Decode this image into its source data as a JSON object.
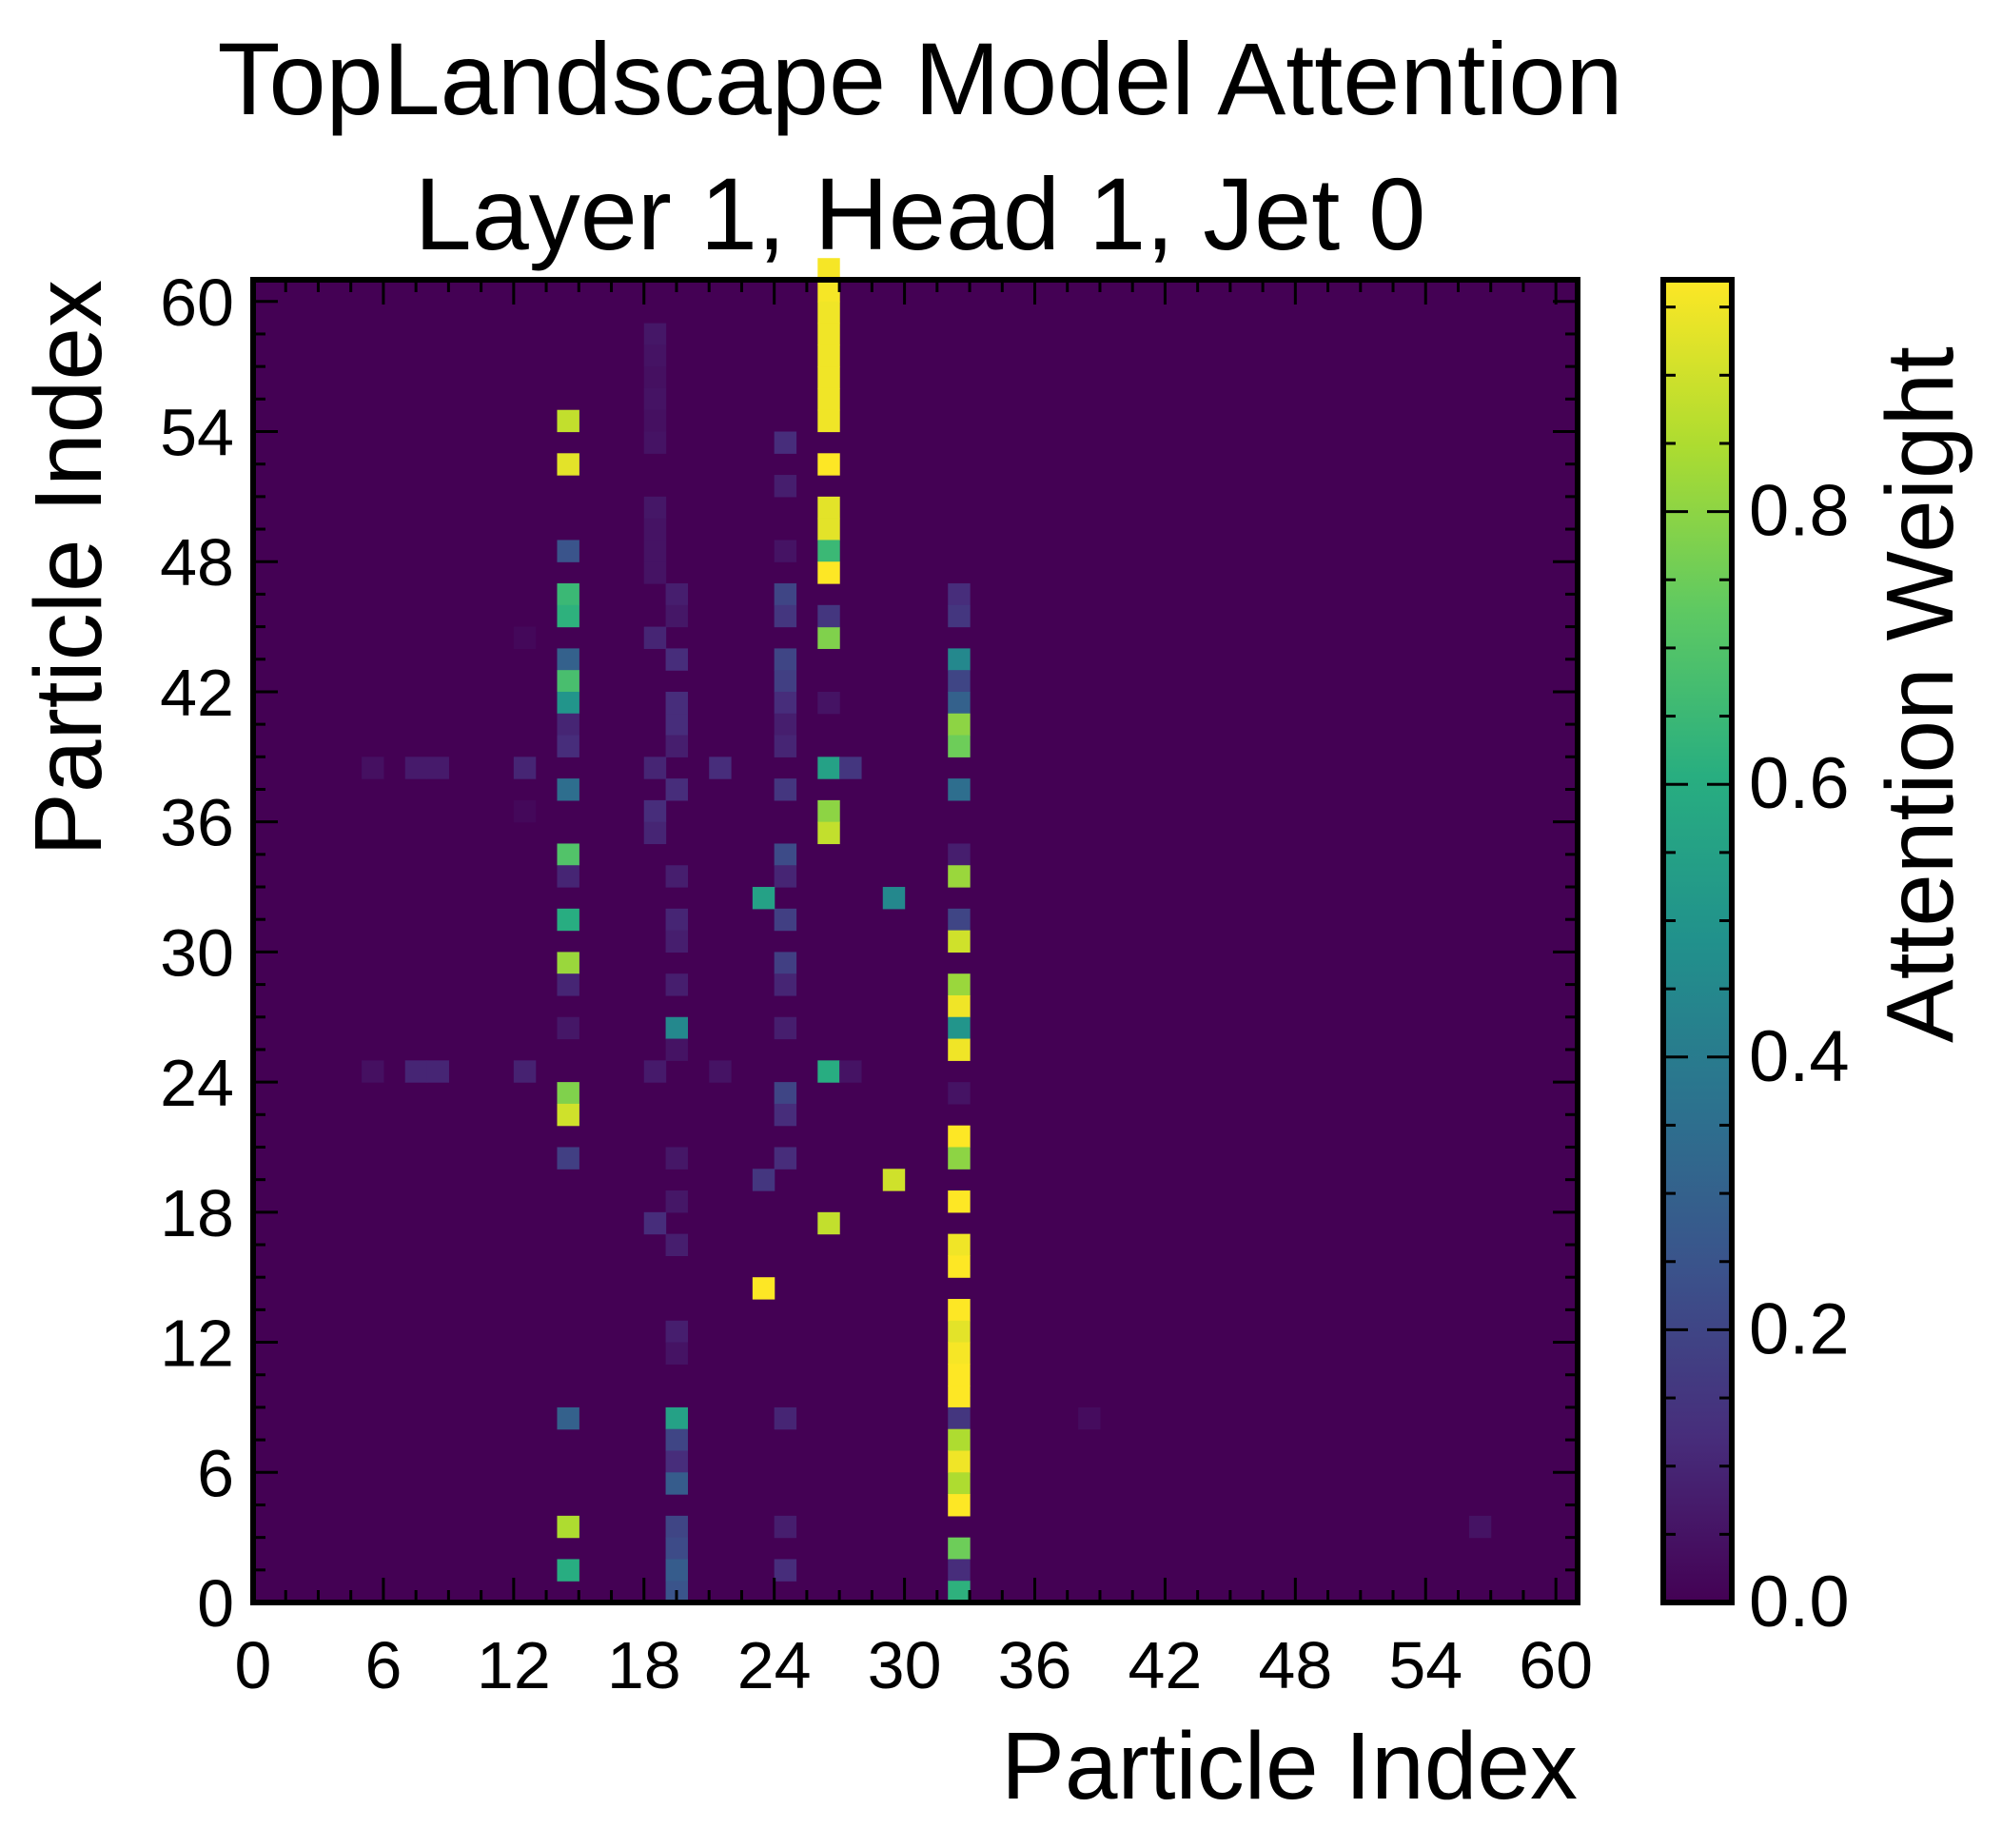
{
  "chart_data": {
    "type": "heatmap",
    "title_lines": [
      "TopLandscape Model Attention",
      "Layer 1, Head 1, Jet 0"
    ],
    "xlabel": "Particle Index",
    "ylabel": "Particle Index",
    "colorbar_label": "Attention Weight",
    "colormap": "viridis",
    "xlim": [
      0,
      61
    ],
    "ylim": [
      0,
      61
    ],
    "vlim": [
      0,
      0.97
    ],
    "background_value": 0.0,
    "x_ticks": [
      0,
      6,
      12,
      18,
      24,
      30,
      36,
      42,
      48,
      54,
      60
    ],
    "y_ticks": [
      0,
      6,
      12,
      18,
      24,
      30,
      36,
      42,
      48,
      54,
      60
    ],
    "x_tick_labels": [
      "0",
      "6",
      "12",
      "18",
      "24",
      "30",
      "36",
      "42",
      "48",
      "54",
      "60"
    ],
    "y_tick_labels": [
      "0",
      "6",
      "12",
      "18",
      "24",
      "30",
      "36",
      "42",
      "48",
      "54",
      "60"
    ],
    "colorbar_ticks": [
      0.0,
      0.2,
      0.4,
      0.6,
      0.8
    ],
    "colorbar_tick_labels": [
      "0.0",
      "0.2",
      "0.4",
      "0.6",
      "0.8"
    ],
    "cells": [
      [
        26,
        61,
        0.96
      ],
      [
        26,
        60,
        0.96
      ],
      [
        26,
        59,
        0.95
      ],
      [
        26,
        58,
        0.95
      ],
      [
        26,
        57,
        0.95
      ],
      [
        26,
        56,
        0.95
      ],
      [
        26,
        55,
        0.95
      ],
      [
        26,
        54,
        0.95
      ],
      [
        26,
        52,
        0.97
      ],
      [
        26,
        50,
        0.93
      ],
      [
        26,
        49,
        0.93
      ],
      [
        26,
        48,
        0.65
      ],
      [
        26,
        47,
        0.97
      ],
      [
        26,
        44,
        0.78
      ],
      [
        26,
        38,
        0.55
      ],
      [
        26,
        36,
        0.8
      ],
      [
        26,
        35,
        0.88
      ],
      [
        26,
        24,
        0.6
      ],
      [
        26,
        17,
        0.88
      ],
      [
        26,
        45,
        0.15
      ],
      [
        26,
        41,
        0.05
      ],
      [
        14,
        54,
        0.88
      ],
      [
        14,
        52,
        0.93
      ],
      [
        14,
        48,
        0.25
      ],
      [
        14,
        46,
        0.65
      ],
      [
        14,
        45,
        0.62
      ],
      [
        14,
        43,
        0.3
      ],
      [
        14,
        42,
        0.68
      ],
      [
        14,
        41,
        0.5
      ],
      [
        14,
        40,
        0.1
      ],
      [
        14,
        39,
        0.12
      ],
      [
        14,
        37,
        0.35
      ],
      [
        14,
        34,
        0.7
      ],
      [
        14,
        33,
        0.1
      ],
      [
        14,
        31,
        0.6
      ],
      [
        14,
        29,
        0.82
      ],
      [
        14,
        28,
        0.1
      ],
      [
        14,
        26,
        0.06
      ],
      [
        14,
        23,
        0.78
      ],
      [
        14,
        22,
        0.9
      ],
      [
        14,
        20,
        0.18
      ],
      [
        14,
        8,
        0.3
      ],
      [
        14,
        3,
        0.85
      ],
      [
        14,
        1,
        0.6
      ],
      [
        32,
        46,
        0.12
      ],
      [
        32,
        45,
        0.15
      ],
      [
        32,
        43,
        0.45
      ],
      [
        32,
        42,
        0.2
      ],
      [
        32,
        41,
        0.3
      ],
      [
        32,
        40,
        0.8
      ],
      [
        32,
        39,
        0.75
      ],
      [
        32,
        37,
        0.35
      ],
      [
        32,
        34,
        0.08
      ],
      [
        32,
        33,
        0.82
      ],
      [
        32,
        31,
        0.2
      ],
      [
        32,
        30,
        0.9
      ],
      [
        32,
        28,
        0.82
      ],
      [
        32,
        27,
        0.95
      ],
      [
        32,
        26,
        0.5
      ],
      [
        32,
        25,
        0.95
      ],
      [
        32,
        23,
        0.05
      ],
      [
        32,
        21,
        0.97
      ],
      [
        32,
        20,
        0.8
      ],
      [
        32,
        18,
        0.97
      ],
      [
        32,
        16,
        0.95
      ],
      [
        32,
        15,
        0.97
      ],
      [
        32,
        13,
        0.97
      ],
      [
        32,
        12,
        0.93
      ],
      [
        32,
        11,
        0.96
      ],
      [
        32,
        10,
        0.97
      ],
      [
        32,
        9,
        0.97
      ],
      [
        32,
        8,
        0.15
      ],
      [
        32,
        7,
        0.85
      ],
      [
        32,
        6,
        0.95
      ],
      [
        32,
        5,
        0.85
      ],
      [
        32,
        4,
        0.97
      ],
      [
        32,
        2,
        0.75
      ],
      [
        32,
        1,
        0.12
      ],
      [
        32,
        0,
        0.62
      ],
      [
        19,
        8,
        0.55
      ],
      [
        19,
        7,
        0.2
      ],
      [
        19,
        6,
        0.12
      ],
      [
        19,
        5,
        0.28
      ],
      [
        19,
        3,
        0.2
      ],
      [
        19,
        2,
        0.22
      ],
      [
        19,
        1,
        0.28
      ],
      [
        19,
        0,
        0.25
      ],
      [
        19,
        26,
        0.45
      ],
      [
        19,
        25,
        0.05
      ],
      [
        19,
        28,
        0.08
      ],
      [
        19,
        31,
        0.1
      ],
      [
        19,
        30,
        0.08
      ],
      [
        19,
        33,
        0.08
      ],
      [
        19,
        37,
        0.12
      ],
      [
        19,
        40,
        0.12
      ],
      [
        19,
        41,
        0.12
      ],
      [
        19,
        43,
        0.12
      ],
      [
        19,
        46,
        0.08
      ],
      [
        19,
        45,
        0.06
      ],
      [
        19,
        18,
        0.06
      ],
      [
        19,
        16,
        0.08
      ],
      [
        19,
        12,
        0.08
      ],
      [
        19,
        11,
        0.05
      ],
      [
        19,
        20,
        0.06
      ],
      [
        19,
        39,
        0.08
      ],
      [
        18,
        58,
        0.06
      ],
      [
        18,
        57,
        0.05
      ],
      [
        18,
        56,
        0.04
      ],
      [
        18,
        55,
        0.05
      ],
      [
        18,
        54,
        0.04
      ],
      [
        18,
        53,
        0.05
      ],
      [
        18,
        50,
        0.06
      ],
      [
        18,
        49,
        0.05
      ],
      [
        18,
        48,
        0.05
      ],
      [
        18,
        47,
        0.05
      ],
      [
        18,
        44,
        0.1
      ],
      [
        18,
        38,
        0.1
      ],
      [
        18,
        36,
        0.12
      ],
      [
        18,
        35,
        0.1
      ],
      [
        18,
        24,
        0.07
      ],
      [
        18,
        17,
        0.12
      ],
      [
        24,
        53,
        0.12
      ],
      [
        24,
        51,
        0.08
      ],
      [
        24,
        48,
        0.05
      ],
      [
        24,
        46,
        0.2
      ],
      [
        24,
        45,
        0.15
      ],
      [
        24,
        43,
        0.2
      ],
      [
        24,
        42,
        0.18
      ],
      [
        24,
        41,
        0.12
      ],
      [
        24,
        40,
        0.08
      ],
      [
        24,
        39,
        0.1
      ],
      [
        24,
        37,
        0.15
      ],
      [
        24,
        34,
        0.22
      ],
      [
        24,
        33,
        0.1
      ],
      [
        24,
        31,
        0.18
      ],
      [
        24,
        29,
        0.18
      ],
      [
        24,
        28,
        0.1
      ],
      [
        24,
        26,
        0.08
      ],
      [
        24,
        23,
        0.2
      ],
      [
        24,
        22,
        0.12
      ],
      [
        24,
        20,
        0.12
      ],
      [
        24,
        8,
        0.1
      ],
      [
        24,
        3,
        0.08
      ],
      [
        24,
        1,
        0.12
      ],
      [
        23,
        32,
        0.55
      ],
      [
        23,
        19,
        0.15
      ],
      [
        23,
        14,
        0.97
      ],
      [
        29,
        32,
        0.45
      ],
      [
        29,
        19,
        0.9
      ],
      [
        5,
        38,
        0.04
      ],
      [
        5,
        24,
        0.04
      ],
      [
        7,
        38,
        0.07
      ],
      [
        8,
        38,
        0.07
      ],
      [
        7,
        24,
        0.1
      ],
      [
        8,
        24,
        0.1
      ],
      [
        12,
        38,
        0.1
      ],
      [
        12,
        24,
        0.09
      ],
      [
        21,
        38,
        0.12
      ],
      [
        21,
        24,
        0.05
      ],
      [
        27,
        38,
        0.15
      ],
      [
        27,
        24,
        0.05
      ],
      [
        12,
        44,
        0.02
      ],
      [
        12,
        36,
        0.02
      ],
      [
        38,
        8,
        0.03
      ],
      [
        56,
        3,
        0.05
      ]
    ]
  }
}
